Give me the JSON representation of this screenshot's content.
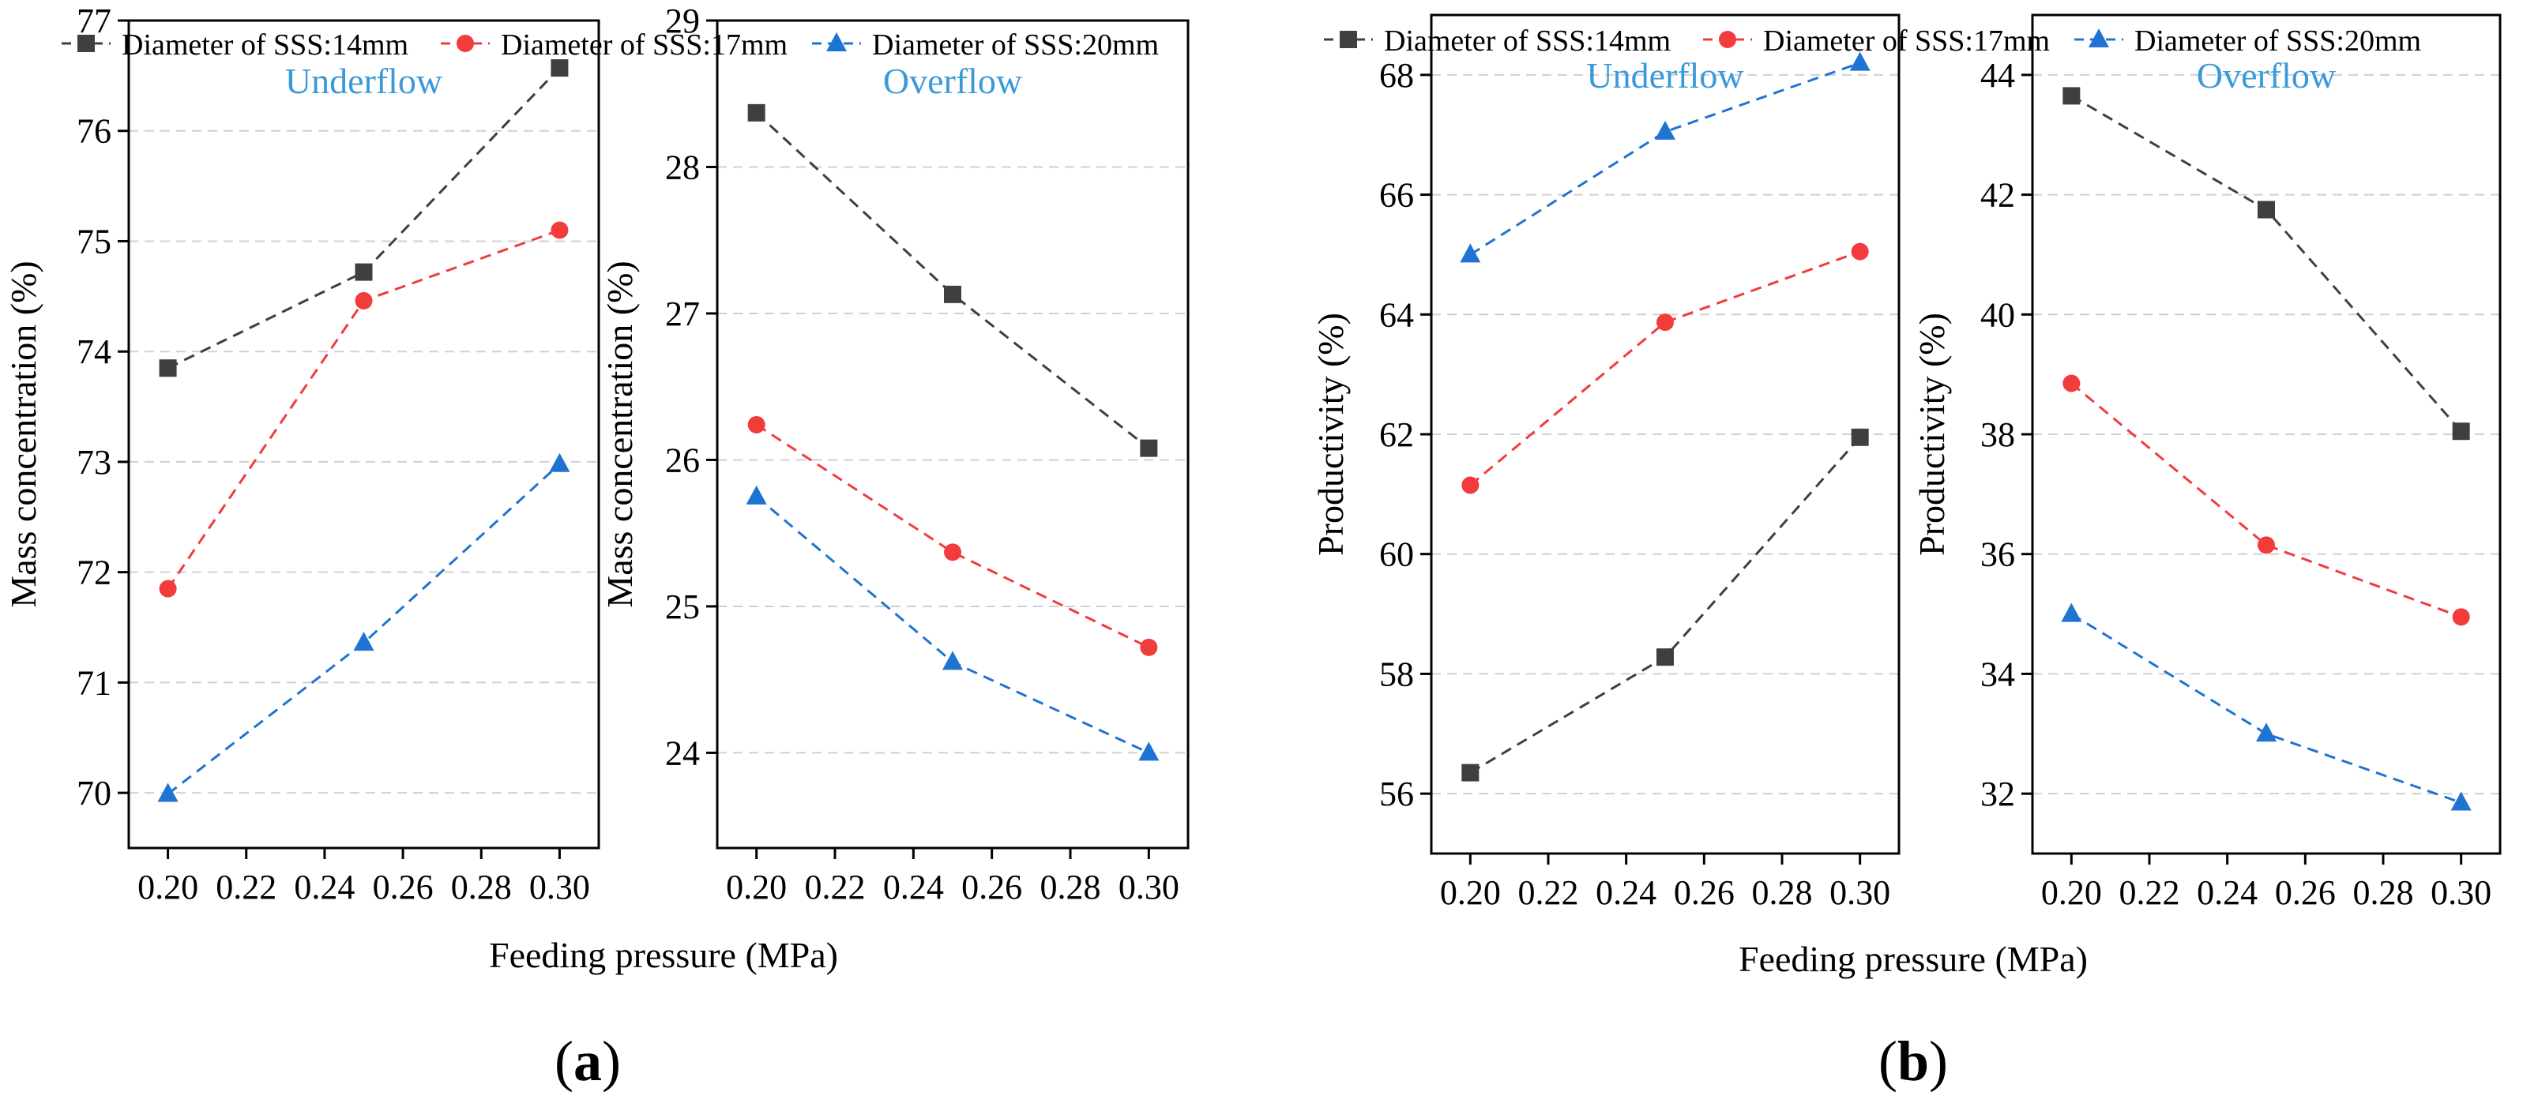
{
  "legend_labels": [
    "Diameter of SSS:14mm",
    "Diameter of SSS:17mm",
    "Diameter of SSS:20mm"
  ],
  "colors": {
    "series_14": "#3f3f3f",
    "series_17": "#f23b3b",
    "series_20": "#1f73d2",
    "panel_title": "#3a9ad9",
    "grid": "#d0d0d0"
  },
  "figures": [
    {
      "label_open": "(",
      "label_letter": "a",
      "label_close": ")",
      "xlabel": "Feeding pressure (MPa)"
    },
    {
      "label_open": "(",
      "label_letter": "b",
      "label_close": ")",
      "xlabel": "Feeding pressure (MPa)"
    }
  ],
  "chart_data": [
    {
      "type": "line",
      "title": "Underflow",
      "ylabel": "Mass concentration (%)",
      "x": [
        0.2,
        0.25,
        0.3
      ],
      "xlim": [
        0.19,
        0.31
      ],
      "xticks": [
        "0.20",
        "0.22",
        "0.24",
        "0.26",
        "0.28",
        "0.30"
      ],
      "ylim": [
        69.5,
        77
      ],
      "yticks": [
        "70",
        "71",
        "72",
        "73",
        "74",
        "75",
        "76",
        "77"
      ],
      "series": [
        {
          "name": "Diameter of SSS:14mm",
          "marker": "square",
          "values": [
            73.85,
            74.72,
            76.57
          ]
        },
        {
          "name": "Diameter of SSS:17mm",
          "marker": "circle",
          "values": [
            71.85,
            74.46,
            75.1
          ]
        },
        {
          "name": "Diameter of SSS:20mm",
          "marker": "triangle",
          "values": [
            69.99,
            71.36,
            72.98
          ]
        }
      ]
    },
    {
      "type": "line",
      "title": "Overflow",
      "ylabel": "Mass concentration (%)",
      "x": [
        0.2,
        0.25,
        0.3
      ],
      "xlim": [
        0.19,
        0.31
      ],
      "xticks": [
        "0.20",
        "0.22",
        "0.24",
        "0.26",
        "0.28",
        "0.30"
      ],
      "ylim": [
        23.35,
        29
      ],
      "yticks": [
        "24",
        "25",
        "26",
        "27",
        "28",
        "29"
      ],
      "series": [
        {
          "name": "Diameter of SSS:14mm",
          "marker": "square",
          "values": [
            28.37,
            27.13,
            26.08
          ]
        },
        {
          "name": "Diameter of SSS:17mm",
          "marker": "circle",
          "values": [
            26.24,
            25.37,
            24.72
          ]
        },
        {
          "name": "Diameter of SSS:20mm",
          "marker": "triangle",
          "values": [
            25.75,
            24.62,
            24.0
          ]
        }
      ]
    },
    {
      "type": "line",
      "title": "Underflow",
      "ylabel": "Productivity (%)",
      "x": [
        0.2,
        0.25,
        0.3
      ],
      "xlim": [
        0.19,
        0.31
      ],
      "xticks": [
        "0.20",
        "0.22",
        "0.24",
        "0.26",
        "0.28",
        "0.30"
      ],
      "ylim": [
        55,
        69
      ],
      "yticks": [
        "56",
        "58",
        "60",
        "62",
        "64",
        "66",
        "68"
      ],
      "series": [
        {
          "name": "Diameter of SSS:14mm",
          "marker": "square",
          "values": [
            56.35,
            58.28,
            61.95
          ]
        },
        {
          "name": "Diameter of SSS:17mm",
          "marker": "circle",
          "values": [
            61.15,
            63.87,
            65.05
          ]
        },
        {
          "name": "Diameter of SSS:20mm",
          "marker": "triangle",
          "values": [
            65.0,
            67.05,
            68.2
          ]
        }
      ]
    },
    {
      "type": "line",
      "title": "Overflow",
      "ylabel": "Productivity (%)",
      "x": [
        0.2,
        0.25,
        0.3
      ],
      "xlim": [
        0.19,
        0.31
      ],
      "xticks": [
        "0.20",
        "0.22",
        "0.24",
        "0.26",
        "0.28",
        "0.30"
      ],
      "ylim": [
        31,
        45
      ],
      "yticks": [
        "32",
        "34",
        "36",
        "38",
        "40",
        "42",
        "44"
      ],
      "series": [
        {
          "name": "Diameter of SSS:14mm",
          "marker": "square",
          "values": [
            43.65,
            41.75,
            38.05
          ]
        },
        {
          "name": "Diameter of SSS:17mm",
          "marker": "circle",
          "values": [
            38.85,
            36.15,
            34.95
          ]
        },
        {
          "name": "Diameter of SSS:20mm",
          "marker": "triangle",
          "values": [
            35.0,
            33.0,
            31.85
          ]
        }
      ]
    }
  ]
}
